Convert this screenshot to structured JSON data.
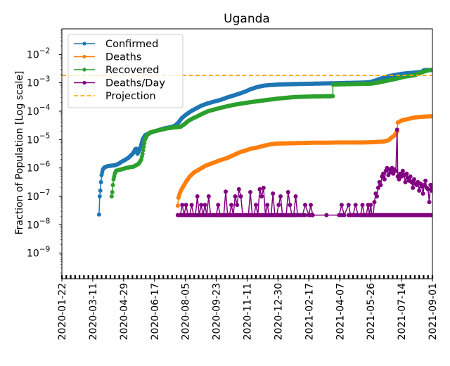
{
  "chart_data": {
    "type": "line",
    "title": "Uganda",
    "xlabel": "",
    "ylabel": "Fraction of Population [Log scale]",
    "yscale": "log",
    "ylim_log10": [
      -9.9,
      -1.1
    ],
    "x_start_date": "2020-01-22",
    "x_end_date": "2021-09-01",
    "xlim_days": [
      0,
      588
    ],
    "x_tick_labels": [
      "2020-01-22",
      "2020-03-11",
      "2020-04-29",
      "2020-06-17",
      "2020-08-05",
      "2020-09-23",
      "2020-11-11",
      "2020-12-30",
      "2021-02-17",
      "2021-04-07",
      "2021-05-26",
      "2021-07-14",
      "2021-09-01"
    ],
    "x_tick_days": [
      0,
      49,
      98,
      147,
      196,
      245,
      294,
      343,
      392,
      441,
      490,
      539,
      588
    ],
    "y_ticks_log10": [
      -2,
      -3,
      -4,
      -5,
      -6,
      -7,
      -8,
      -9
    ],
    "y_tick_labels": [
      {
        "base": "10",
        "exp": "−2"
      },
      {
        "base": "10",
        "exp": "−3"
      },
      {
        "base": "10",
        "exp": "−4"
      },
      {
        "base": "10",
        "exp": "−5"
      },
      {
        "base": "10",
        "exp": "−6"
      },
      {
        "base": "10",
        "exp": "−7"
      },
      {
        "base": "10",
        "exp": "−8"
      },
      {
        "base": "10",
        "exp": "−9"
      }
    ],
    "grid": false,
    "legend_position": "top-left",
    "series": [
      {
        "name": "Confirmed",
        "color": "#1f77b4",
        "marker": "dot",
        "points_day_log10": [
          [
            59,
            -7.64
          ],
          [
            60,
            -7.0
          ],
          [
            61,
            -6.8
          ],
          [
            62,
            -6.5
          ],
          [
            63,
            -6.25
          ],
          [
            65,
            -6.05
          ],
          [
            68,
            -5.97
          ],
          [
            72,
            -5.94
          ],
          [
            78,
            -5.92
          ],
          [
            85,
            -5.9
          ],
          [
            90,
            -5.85
          ],
          [
            95,
            -5.78
          ],
          [
            100,
            -5.72
          ],
          [
            105,
            -5.65
          ],
          [
            110,
            -5.55
          ],
          [
            114,
            -5.45
          ],
          [
            116,
            -5.35
          ],
          [
            118,
            -5.32
          ],
          [
            120,
            -5.5
          ],
          [
            122,
            -5.42
          ],
          [
            125,
            -5.25
          ],
          [
            128,
            -5.0
          ],
          [
            132,
            -4.85
          ],
          [
            138,
            -4.78
          ],
          [
            145,
            -4.72
          ],
          [
            152,
            -4.68
          ],
          [
            160,
            -4.62
          ],
          [
            168,
            -4.58
          ],
          [
            175,
            -4.55
          ],
          [
            180,
            -4.5
          ],
          [
            185,
            -4.4
          ],
          [
            190,
            -4.25
          ],
          [
            197,
            -4.12
          ],
          [
            205,
            -4.0
          ],
          [
            213,
            -3.9
          ],
          [
            222,
            -3.8
          ],
          [
            232,
            -3.72
          ],
          [
            242,
            -3.66
          ],
          [
            252,
            -3.6
          ],
          [
            262,
            -3.52
          ],
          [
            272,
            -3.45
          ],
          [
            282,
            -3.38
          ],
          [
            292,
            -3.3
          ],
          [
            300,
            -3.22
          ],
          [
            310,
            -3.15
          ],
          [
            320,
            -3.1
          ],
          [
            330,
            -3.08
          ],
          [
            345,
            -3.06
          ],
          [
            360,
            -3.05
          ],
          [
            380,
            -3.04
          ],
          [
            400,
            -3.03
          ],
          [
            420,
            -3.02
          ],
          [
            440,
            -3.01
          ],
          [
            460,
            -3.0
          ],
          [
            480,
            -2.99
          ],
          [
            490,
            -2.97
          ],
          [
            500,
            -2.9
          ],
          [
            510,
            -2.82
          ],
          [
            520,
            -2.76
          ],
          [
            530,
            -2.72
          ],
          [
            540,
            -2.68
          ],
          [
            555,
            -2.65
          ],
          [
            570,
            -2.62
          ],
          [
            575,
            -2.55
          ],
          [
            588,
            -2.55
          ]
        ]
      },
      {
        "name": "Deaths",
        "color": "#ff7f0e",
        "marker": "dot",
        "points_day_log10": [
          [
            184,
            -7.33
          ],
          [
            185,
            -7.05
          ],
          [
            187,
            -6.9
          ],
          [
            190,
            -6.75
          ],
          [
            194,
            -6.6
          ],
          [
            198,
            -6.45
          ],
          [
            203,
            -6.3
          ],
          [
            210,
            -6.15
          ],
          [
            218,
            -6.05
          ],
          [
            228,
            -5.92
          ],
          [
            240,
            -5.82
          ],
          [
            252,
            -5.72
          ],
          [
            262,
            -5.65
          ],
          [
            272,
            -5.55
          ],
          [
            282,
            -5.45
          ],
          [
            292,
            -5.38
          ],
          [
            300,
            -5.32
          ],
          [
            310,
            -5.28
          ],
          [
            320,
            -5.22
          ],
          [
            330,
            -5.17
          ],
          [
            340,
            -5.14
          ],
          [
            360,
            -5.13
          ],
          [
            380,
            -5.12
          ],
          [
            400,
            -5.11
          ],
          [
            420,
            -5.11
          ],
          [
            440,
            -5.1
          ],
          [
            460,
            -5.1
          ],
          [
            480,
            -5.1
          ],
          [
            495,
            -5.09
          ],
          [
            510,
            -5.07
          ],
          [
            518,
            -5.03
          ],
          [
            522,
            -4.95
          ],
          [
            528,
            -4.85
          ],
          [
            532,
            -4.7
          ],
          [
            533,
            -4.4
          ],
          [
            540,
            -4.32
          ],
          [
            550,
            -4.27
          ],
          [
            560,
            -4.22
          ],
          [
            575,
            -4.19
          ],
          [
            588,
            -4.18
          ]
        ]
      },
      {
        "name": "Recovered",
        "color": "#2ca02c",
        "marker": "dot",
        "points_day_log10": [
          [
            79,
            -7.0
          ],
          [
            80,
            -6.85
          ],
          [
            81,
            -6.6
          ],
          [
            82,
            -6.4
          ],
          [
            84,
            -6.2
          ],
          [
            86,
            -6.1
          ],
          [
            90,
            -6.07
          ],
          [
            96,
            -6.04
          ],
          [
            102,
            -6.0
          ],
          [
            108,
            -5.97
          ],
          [
            114,
            -5.95
          ],
          [
            118,
            -5.9
          ],
          [
            122,
            -5.85
          ],
          [
            126,
            -5.7
          ],
          [
            128,
            -5.5
          ],
          [
            130,
            -5.25
          ],
          [
            132,
            -5.0
          ],
          [
            135,
            -4.85
          ],
          [
            140,
            -4.75
          ],
          [
            148,
            -4.7
          ],
          [
            158,
            -4.65
          ],
          [
            168,
            -4.6
          ],
          [
            178,
            -4.57
          ],
          [
            188,
            -4.55
          ],
          [
            195,
            -4.45
          ],
          [
            200,
            -4.35
          ],
          [
            208,
            -4.25
          ],
          [
            215,
            -4.18
          ],
          [
            222,
            -4.1
          ],
          [
            232,
            -4.0
          ],
          [
            242,
            -3.94
          ],
          [
            252,
            -3.88
          ],
          [
            262,
            -3.83
          ],
          [
            272,
            -3.78
          ],
          [
            285,
            -3.73
          ],
          [
            300,
            -3.68
          ],
          [
            320,
            -3.62
          ],
          [
            345,
            -3.55
          ],
          [
            370,
            -3.5
          ],
          [
            400,
            -3.48
          ],
          [
            430,
            -3.47
          ],
          [
            430,
            -3.06
          ],
          [
            450,
            -3.05
          ],
          [
            470,
            -3.04
          ],
          [
            490,
            -3.03
          ],
          [
            500,
            -3.0
          ],
          [
            515,
            -2.93
          ],
          [
            530,
            -2.86
          ],
          [
            545,
            -2.78
          ],
          [
            560,
            -2.73
          ],
          [
            575,
            -2.6
          ],
          [
            584,
            -2.55
          ]
        ]
      },
      {
        "name": "Deaths/Day",
        "color": "#800080",
        "marker": "dot",
        "points_day_log10": [
          [
            184,
            -7.66
          ],
          [
            188,
            -7.66
          ],
          [
            191,
            -7.3
          ],
          [
            194,
            -7.66
          ],
          [
            197,
            -7.3
          ],
          [
            200,
            -7.66
          ],
          [
            203,
            -7.66
          ],
          [
            206,
            -7.3
          ],
          [
            209,
            -7.66
          ],
          [
            212,
            -7.66
          ],
          [
            215,
            -7.0
          ],
          [
            218,
            -7.66
          ],
          [
            221,
            -7.3
          ],
          [
            224,
            -7.66
          ],
          [
            227,
            -7.3
          ],
          [
            230,
            -7.66
          ],
          [
            233,
            -7.0
          ],
          [
            236,
            -7.66
          ],
          [
            239,
            -7.66
          ],
          [
            242,
            -7.66
          ],
          [
            245,
            -7.66
          ],
          [
            248,
            -7.3
          ],
          [
            251,
            -7.66
          ],
          [
            254,
            -7.66
          ],
          [
            257,
            -7.66
          ],
          [
            260,
            -6.83
          ],
          [
            263,
            -7.66
          ],
          [
            266,
            -7.66
          ],
          [
            269,
            -7.3
          ],
          [
            272,
            -7.66
          ],
          [
            275,
            -7.0
          ],
          [
            278,
            -7.3
          ],
          [
            281,
            -6.75
          ],
          [
            284,
            -7.0
          ],
          [
            287,
            -7.66
          ],
          [
            290,
            -7.66
          ],
          [
            293,
            -7.66
          ],
          [
            296,
            -7.66
          ],
          [
            299,
            -6.85
          ],
          [
            302,
            -7.66
          ],
          [
            305,
            -7.66
          ],
          [
            308,
            -7.3
          ],
          [
            311,
            -7.66
          ],
          [
            314,
            -6.75
          ],
          [
            317,
            -7.0
          ],
          [
            320,
            -6.7
          ],
          [
            323,
            -7.66
          ],
          [
            326,
            -7.3
          ],
          [
            329,
            -7.66
          ],
          [
            332,
            -7.66
          ],
          [
            335,
            -6.9
          ],
          [
            338,
            -7.66
          ],
          [
            341,
            -7.66
          ],
          [
            344,
            -7.3
          ],
          [
            347,
            -7.0
          ],
          [
            350,
            -7.66
          ],
          [
            353,
            -7.66
          ],
          [
            356,
            -7.66
          ],
          [
            359,
            -6.85
          ],
          [
            362,
            -7.3
          ],
          [
            365,
            -7.66
          ],
          [
            368,
            -7.66
          ],
          [
            371,
            -7.0
          ],
          [
            374,
            -7.66
          ],
          [
            378,
            -7.66
          ],
          [
            382,
            -7.66
          ],
          [
            386,
            -7.3
          ],
          [
            392,
            -7.66
          ],
          [
            395,
            -7.3
          ],
          [
            398,
            -7.66
          ],
          [
            420,
            -7.66
          ],
          [
            440,
            -7.66
          ],
          [
            444,
            -7.3
          ],
          [
            448,
            -7.66
          ],
          [
            455,
            -7.3
          ],
          [
            458,
            -7.66
          ],
          [
            462,
            -7.66
          ],
          [
            466,
            -7.3
          ],
          [
            470,
            -7.66
          ],
          [
            474,
            -7.66
          ],
          [
            477,
            -7.3
          ],
          [
            480,
            -7.66
          ],
          [
            483,
            -7.66
          ],
          [
            486,
            -7.3
          ],
          [
            488,
            -7.66
          ],
          [
            490,
            -7.3
          ],
          [
            492,
            -7.66
          ],
          [
            494,
            -7.66
          ],
          [
            496,
            -7.2
          ],
          [
            498,
            -6.9
          ],
          [
            500,
            -7.0
          ],
          [
            502,
            -6.7
          ],
          [
            504,
            -6.5
          ],
          [
            506,
            -6.6
          ],
          [
            508,
            -6.3
          ],
          [
            510,
            -6.2
          ],
          [
            512,
            -6.4
          ],
          [
            514,
            -6.1
          ],
          [
            516,
            -6.0
          ],
          [
            518,
            -6.25
          ],
          [
            520,
            -6.05
          ],
          [
            522,
            -6.15
          ],
          [
            524,
            -6.0
          ],
          [
            526,
            -6.2
          ],
          [
            528,
            -6.05
          ],
          [
            530,
            -6.1
          ],
          [
            532,
            -4.65
          ],
          [
            533,
            -6.3
          ],
          [
            535,
            -6.4
          ],
          [
            537,
            -6.2
          ],
          [
            539,
            -6.3
          ],
          [
            541,
            -6.1
          ],
          [
            543,
            -6.25
          ],
          [
            545,
            -6.5
          ],
          [
            547,
            -6.2
          ],
          [
            549,
            -6.35
          ],
          [
            551,
            -6.45
          ],
          [
            553,
            -6.3
          ],
          [
            555,
            -6.5
          ],
          [
            557,
            -6.7
          ],
          [
            559,
            -6.4
          ],
          [
            561,
            -6.55
          ],
          [
            563,
            -6.6
          ],
          [
            565,
            -6.5
          ],
          [
            567,
            -6.8
          ],
          [
            569,
            -6.55
          ],
          [
            571,
            -6.65
          ],
          [
            573,
            -6.9
          ],
          [
            575,
            -6.6
          ],
          [
            577,
            -6.45
          ],
          [
            579,
            -6.7
          ],
          [
            581,
            -6.75
          ],
          [
            583,
            -7.2
          ],
          [
            585,
            -6.6
          ],
          [
            587,
            -6.8
          ],
          [
            588,
            -6.6
          ]
        ]
      },
      {
        "name": "Projection",
        "color": "#ffa500",
        "style": "dashed",
        "constant_log10": -2.74
      }
    ]
  }
}
